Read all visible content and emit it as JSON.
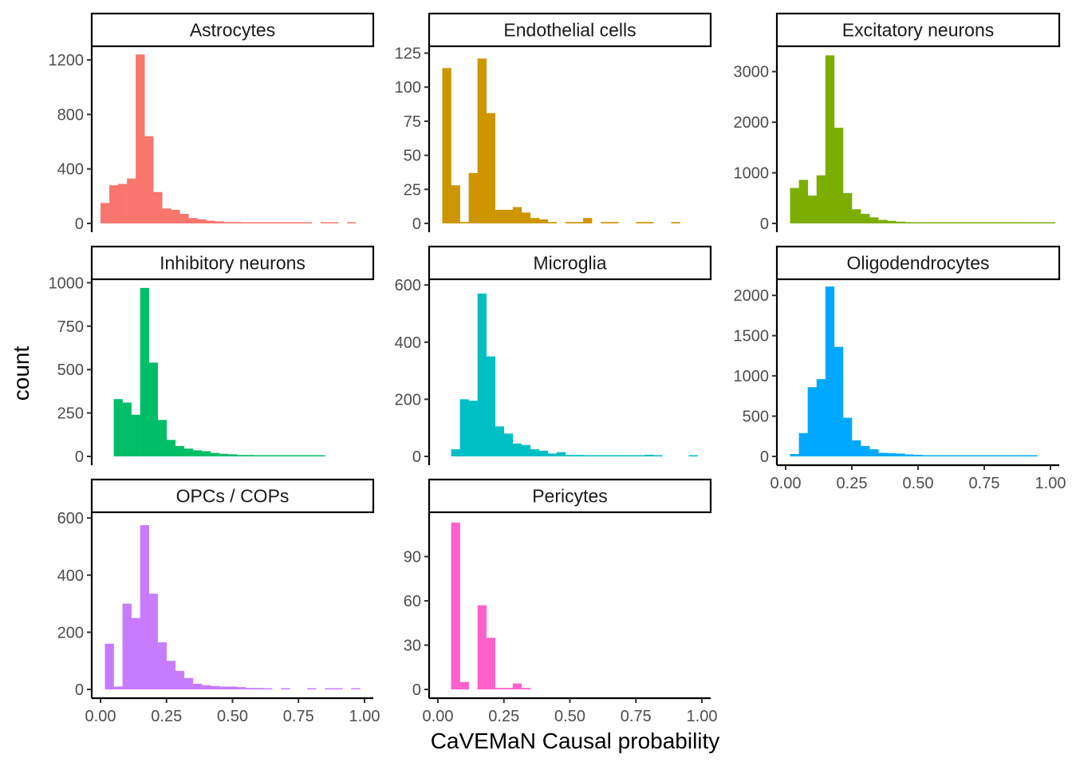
{
  "axes": {
    "xlabel": "CaVEMaN Causal probability",
    "ylabel": "count",
    "xlim": [
      0,
      1
    ],
    "x_ticks": [
      "0.00",
      "0.25",
      "0.50",
      "0.75",
      "1.00"
    ]
  },
  "chart_data": [
    {
      "type": "histogram",
      "title": "Astrocytes",
      "color": "#F8766D",
      "bin_width": 0.0333,
      "x": [
        0.0167,
        0.05,
        0.0833,
        0.1167,
        0.15,
        0.1833,
        0.2167,
        0.25,
        0.2833,
        0.3167,
        0.35,
        0.3833,
        0.4167,
        0.45,
        0.4833,
        0.5167,
        0.55,
        0.5833,
        0.6167,
        0.65,
        0.6833,
        0.7167,
        0.75,
        0.7833,
        0.8167,
        0.85,
        0.8833,
        0.9167,
        0.95,
        0.9833
      ],
      "values": [
        150,
        280,
        290,
        330,
        1240,
        640,
        230,
        110,
        100,
        70,
        40,
        30,
        20,
        15,
        10,
        10,
        5,
        5,
        5,
        5,
        5,
        5,
        5,
        5,
        0,
        5,
        5,
        0,
        5,
        0
      ],
      "ylim": [
        0,
        1300
      ],
      "y_ticks": [
        0,
        400,
        800,
        1200
      ],
      "y_tick_labels": [
        "0",
        "400",
        "800",
        "1200"
      ]
    },
    {
      "type": "histogram",
      "title": "Endothelial cells",
      "color": "#CD9600",
      "bin_width": 0.0333,
      "x": [
        0.0333,
        0.0667,
        0.1,
        0.1333,
        0.1667,
        0.2,
        0.2333,
        0.2667,
        0.3,
        0.3333,
        0.3667,
        0.4,
        0.4333,
        0.4667,
        0.5,
        0.5333,
        0.5667,
        0.6,
        0.6333,
        0.6667,
        0.7,
        0.7333,
        0.7667,
        0.8,
        0.8333,
        0.8667,
        0.9
      ],
      "values": [
        114,
        28,
        1,
        37,
        121,
        81,
        10,
        10,
        12,
        8,
        4,
        3,
        1,
        0,
        1,
        1,
        4,
        0,
        1,
        1,
        0,
        0,
        1,
        1,
        0,
        0,
        1
      ],
      "ylim": [
        0,
        130
      ],
      "y_ticks": [
        0,
        25,
        50,
        75,
        100,
        125
      ],
      "y_tick_labels": [
        "0",
        "25",
        "50",
        "75",
        "100",
        "125"
      ]
    },
    {
      "type": "histogram",
      "title": "Excitatory neurons",
      "color": "#7CAE00",
      "bin_width": 0.0333,
      "x": [
        0.0333,
        0.0667,
        0.1,
        0.1333,
        0.1667,
        0.2,
        0.2333,
        0.2667,
        0.3,
        0.3333,
        0.3667,
        0.4,
        0.4333,
        0.4667,
        0.5,
        0.5333,
        0.5667,
        0.6,
        0.6333,
        0.6667,
        0.7,
        0.7333,
        0.7667,
        0.8,
        0.8333,
        0.8667,
        0.9,
        0.9333,
        0.9667,
        1.0
      ],
      "values": [
        700,
        860,
        550,
        950,
        3320,
        1890,
        600,
        280,
        190,
        120,
        70,
        50,
        35,
        25,
        20,
        15,
        12,
        10,
        8,
        8,
        6,
        6,
        5,
        5,
        4,
        4,
        3,
        3,
        3,
        3
      ],
      "ylim": [
        0,
        3500
      ],
      "y_ticks": [
        0,
        1000,
        2000,
        3000
      ],
      "y_tick_labels": [
        "0",
        "1000",
        "2000",
        "3000"
      ]
    },
    {
      "type": "histogram",
      "title": "Inhibitory neurons",
      "color": "#00BE67",
      "bin_width": 0.0333,
      "x": [
        0.0667,
        0.1,
        0.1333,
        0.1667,
        0.2,
        0.2333,
        0.2667,
        0.3,
        0.3333,
        0.3667,
        0.4,
        0.4333,
        0.4667,
        0.5,
        0.5333,
        0.5667,
        0.6,
        0.6333,
        0.6667,
        0.7,
        0.7333,
        0.7667,
        0.8,
        0.8333
      ],
      "values": [
        330,
        310,
        240,
        970,
        540,
        210,
        95,
        60,
        45,
        35,
        30,
        20,
        15,
        12,
        8,
        8,
        6,
        5,
        5,
        5,
        4,
        6,
        4,
        3
      ],
      "ylim": [
        0,
        1020
      ],
      "y_ticks": [
        0,
        250,
        500,
        750,
        1000
      ],
      "y_tick_labels": [
        "0",
        "250",
        "500",
        "750",
        "1000"
      ]
    },
    {
      "type": "histogram",
      "title": "Microglia",
      "color": "#00BFC4",
      "bin_width": 0.0333,
      "x": [
        0.0667,
        0.1,
        0.1333,
        0.1667,
        0.2,
        0.2333,
        0.2667,
        0.3,
        0.3333,
        0.3667,
        0.4,
        0.4333,
        0.4667,
        0.5,
        0.5333,
        0.5667,
        0.6,
        0.6333,
        0.6667,
        0.7,
        0.7333,
        0.7667,
        0.8,
        0.8333,
        0.8667,
        0.9,
        0.9333,
        0.9667
      ],
      "values": [
        25,
        200,
        195,
        570,
        350,
        105,
        80,
        45,
        40,
        25,
        20,
        10,
        15,
        5,
        5,
        3,
        1,
        3,
        3,
        3,
        3,
        3,
        6,
        1,
        0,
        0,
        0,
        3
      ],
      "ylim": [
        0,
        620
      ],
      "y_ticks": [
        0,
        200,
        400,
        600
      ],
      "y_tick_labels": [
        "0",
        "200",
        "400",
        "600"
      ]
    },
    {
      "type": "histogram",
      "title": "Oligodendrocytes",
      "color": "#00A9FF",
      "bin_width": 0.0333,
      "x": [
        0.0333,
        0.0667,
        0.1,
        0.1333,
        0.1667,
        0.2,
        0.2333,
        0.2667,
        0.3,
        0.3333,
        0.3667,
        0.4,
        0.4333,
        0.4667,
        0.5,
        0.5333,
        0.5667,
        0.6,
        0.6333,
        0.6667,
        0.7,
        0.7333,
        0.7667,
        0.8,
        0.8333,
        0.8667,
        0.9,
        0.9333
      ],
      "values": [
        30,
        290,
        860,
        960,
        2110,
        1360,
        480,
        200,
        130,
        90,
        45,
        40,
        35,
        25,
        20,
        15,
        15,
        10,
        10,
        5,
        5,
        5,
        3,
        5,
        3,
        5,
        3,
        3
      ],
      "ylim": [
        0,
        2200
      ],
      "y_ticks": [
        0,
        500,
        1000,
        1500,
        2000
      ],
      "y_tick_labels": [
        "0",
        "500",
        "1000",
        "1500",
        "2000"
      ]
    },
    {
      "type": "histogram",
      "title": "OPCs / COPs",
      "color": "#C77CFF",
      "bin_width": 0.0333,
      "x": [
        0.0333,
        0.0667,
        0.1,
        0.1333,
        0.1667,
        0.2,
        0.2333,
        0.2667,
        0.3,
        0.3333,
        0.3667,
        0.4,
        0.4333,
        0.4667,
        0.5,
        0.5333,
        0.5667,
        0.6,
        0.6333,
        0.6667,
        0.7,
        0.7333,
        0.7667,
        0.8,
        0.8333,
        0.8667,
        0.9,
        0.9333,
        0.9667
      ],
      "values": [
        160,
        10,
        300,
        250,
        575,
        335,
        165,
        100,
        65,
        40,
        20,
        15,
        12,
        10,
        10,
        8,
        5,
        5,
        3,
        0,
        3,
        0,
        0,
        3,
        0,
        3,
        3,
        0,
        3
      ],
      "ylim": [
        0,
        620
      ],
      "y_ticks": [
        0,
        200,
        400,
        600
      ],
      "y_tick_labels": [
        "0",
        "200",
        "400",
        "600"
      ]
    },
    {
      "type": "histogram",
      "title": "Pericytes",
      "color": "#FF61CC",
      "bin_width": 0.0333,
      "x": [
        0.0667,
        0.1,
        0.1333,
        0.1667,
        0.2,
        0.2333,
        0.2667,
        0.3,
        0.3333,
        0.3667
      ],
      "values": [
        113,
        5,
        0,
        57,
        35,
        1,
        1,
        4,
        1,
        0
      ],
      "ylim": [
        0,
        120
      ],
      "y_ticks": [
        0,
        30,
        60,
        90
      ],
      "y_tick_labels": [
        "0",
        "30",
        "60",
        "90"
      ]
    }
  ]
}
